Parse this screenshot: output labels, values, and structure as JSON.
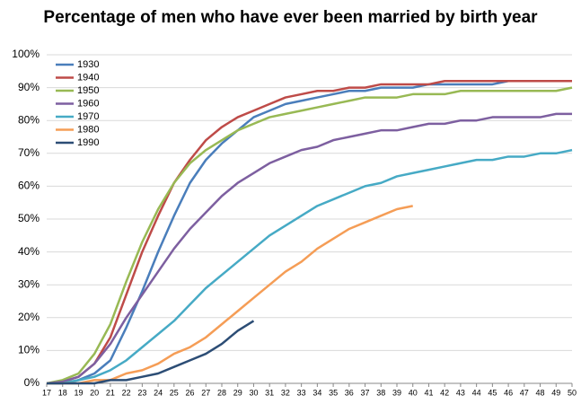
{
  "chart_data": {
    "type": "line",
    "title": "Percentage of men who have ever been married by birth year",
    "x": [
      17,
      18,
      19,
      20,
      21,
      22,
      23,
      24,
      25,
      26,
      27,
      28,
      29,
      30,
      31,
      32,
      33,
      34,
      35,
      36,
      37,
      38,
      39,
      40,
      41,
      42,
      43,
      44,
      45,
      46,
      47,
      48,
      49,
      50
    ],
    "xlim": [
      17,
      50
    ],
    "ylim": [
      0,
      100
    ],
    "yticks": [
      {
        "value": 0,
        "label": "0%"
      },
      {
        "value": 10,
        "label": "10%"
      },
      {
        "value": 20,
        "label": "20%"
      },
      {
        "value": 30,
        "label": "30%"
      },
      {
        "value": 40,
        "label": "40%"
      },
      {
        "value": 50,
        "label": "50%"
      },
      {
        "value": 60,
        "label": "60%"
      },
      {
        "value": 70,
        "label": "70%"
      },
      {
        "value": 80,
        "label": "80%"
      },
      {
        "value": 90,
        "label": "90%"
      },
      {
        "value": 100,
        "label": "100%"
      }
    ],
    "grid": true,
    "legend": "upper left",
    "series": [
      {
        "name": "1930",
        "color": "#4a7ebb",
        "values": [
          0,
          0,
          1,
          3,
          7,
          17,
          28,
          40,
          51,
          61,
          68,
          73,
          77,
          81,
          83,
          85,
          86,
          87,
          88,
          89,
          89,
          90,
          90,
          90,
          91,
          91,
          91,
          91,
          91,
          92,
          92,
          92,
          92,
          92
        ]
      },
      {
        "name": "1940",
        "color": "#be4b48",
        "values": [
          0,
          0.5,
          2,
          6,
          14,
          27,
          40,
          51,
          61,
          68,
          74,
          78,
          81,
          83,
          85,
          87,
          88,
          89,
          89,
          90,
          90,
          91,
          91,
          91,
          91,
          92,
          92,
          92,
          92,
          92,
          92,
          92,
          92,
          92
        ]
      },
      {
        "name": "1950",
        "color": "#98b954",
        "values": [
          0,
          1,
          3,
          9,
          18,
          31,
          43,
          53,
          61,
          67,
          71,
          74,
          77,
          79,
          81,
          82,
          83,
          84,
          85,
          86,
          87,
          87,
          87,
          88,
          88,
          88,
          89,
          89,
          89,
          89,
          89,
          89,
          89,
          90
        ]
      },
      {
        "name": "1960",
        "color": "#7d5fa0",
        "values": [
          0,
          0.5,
          2,
          6,
          12,
          20,
          27,
          34,
          41,
          47,
          52,
          57,
          61,
          64,
          67,
          69,
          71,
          72,
          74,
          75,
          76,
          77,
          77,
          78,
          79,
          79,
          80,
          80,
          81,
          81,
          81,
          81,
          82,
          82
        ]
      },
      {
        "name": "1970",
        "color": "#46aac5",
        "values": [
          0,
          0,
          1,
          2,
          4,
          7,
          11,
          15,
          19,
          24,
          29,
          33,
          37,
          41,
          45,
          48,
          51,
          54,
          56,
          58,
          60,
          61,
          63,
          64,
          65,
          66,
          67,
          68,
          68,
          69,
          69,
          70,
          70,
          71
        ]
      },
      {
        "name": "1980",
        "color": "#f59d56",
        "values": [
          0,
          0,
          0,
          1,
          1,
          3,
          4,
          6,
          9,
          11,
          14,
          18,
          22,
          26,
          30,
          34,
          37,
          41,
          44,
          47,
          49,
          51,
          53,
          54,
          null,
          null,
          null,
          null,
          null,
          null,
          null,
          null,
          null,
          null
        ]
      },
      {
        "name": "1990",
        "color": "#2c4d75",
        "values": [
          0,
          0,
          0,
          0,
          1,
          1,
          2,
          3,
          5,
          7,
          9,
          12,
          16,
          19,
          null,
          null,
          null,
          null,
          null,
          null,
          null,
          null,
          null,
          null,
          null,
          null,
          null,
          null,
          null,
          null,
          null,
          null,
          null,
          null
        ]
      }
    ]
  }
}
